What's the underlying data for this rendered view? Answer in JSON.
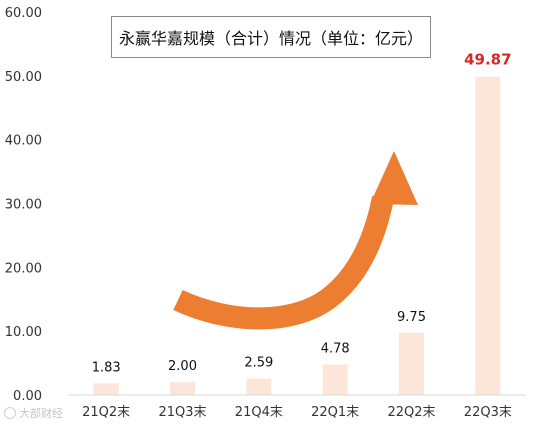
{
  "chart_data": {
    "type": "bar",
    "title": "永赢华嘉规模（合计）情况（单位：亿元）",
    "categories": [
      "21Q2末",
      "21Q3末",
      "21Q4末",
      "22Q1末",
      "22Q2末",
      "22Q3末"
    ],
    "values": [
      1.83,
      2.0,
      2.59,
      4.78,
      9.75,
      49.87
    ],
    "data_labels": [
      "1.83",
      "2.00",
      "2.59",
      "4.78",
      "9.75",
      "49.87"
    ],
    "highlighted_label_index": 5,
    "ylim": [
      0,
      60
    ],
    "yticks": [
      0,
      10,
      20,
      30,
      40,
      50,
      60
    ],
    "ytick_labels": [
      "0.00",
      "10.00",
      "20.00",
      "30.00",
      "40.00",
      "50.00",
      "60.00"
    ],
    "xlabel": "",
    "ylabel": "",
    "grid": false,
    "legend": "none",
    "annotation": "orange upward curved arrow",
    "colors": {
      "bar": "#fce6d9",
      "label": "#111111",
      "highlight_label": "#dc2626",
      "axis": "#d9d9d9",
      "arrow": "#ed7d31",
      "tick_text": "#333333"
    }
  },
  "watermark": {
    "text": "大部财经"
  }
}
